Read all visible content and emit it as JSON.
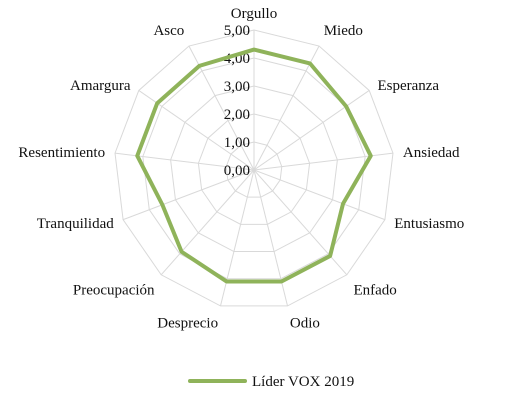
{
  "chart_data": {
    "type": "radar",
    "categories": [
      "Orgullo",
      "Miedo",
      "Esperanza",
      "Ansiedad",
      "Entusiasmo",
      "Enfado",
      "Odio",
      "Desprecio",
      "Preocupación",
      "Tranquilidad",
      "Resentimiento",
      "Amargura",
      "Asco"
    ],
    "series": [
      {
        "name": "Líder VOX 2019",
        "values": [
          4.3,
          4.3,
          4.0,
          4.2,
          3.4,
          4.1,
          4.1,
          4.1,
          3.9,
          3.5,
          4.2,
          4.2,
          4.2
        ],
        "color": "#8fb35a"
      }
    ],
    "rlim": [
      0,
      5
    ],
    "tick_labels": [
      "0,00",
      "1,00",
      "2,00",
      "3,00",
      "4,00",
      "5,00"
    ],
    "grid": true,
    "grid_color": "#d9d9d9",
    "legend_position": "bottom"
  }
}
